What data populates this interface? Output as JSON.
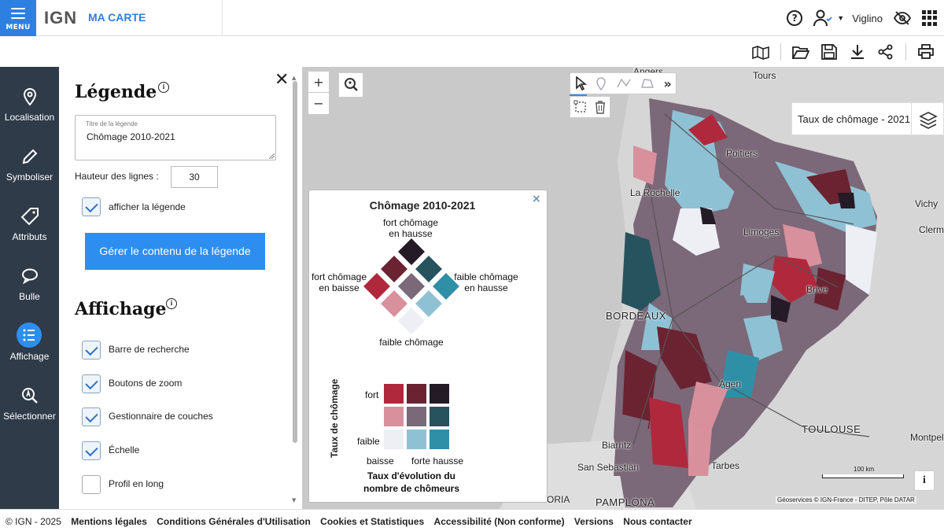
{
  "header": {
    "menu_label": "MENU",
    "logo_text": "IGN",
    "app_title": "MA CARTE",
    "username": "Viglino",
    "accent": "#2d7fe0"
  },
  "toolbar": {
    "icons": [
      "map-catalog-icon",
      "open-folder-icon",
      "save-icon",
      "download-icon",
      "share-icon",
      "print-icon"
    ]
  },
  "leftnav": {
    "items": [
      {
        "label": "Localisation",
        "icon": "location-pin-icon"
      },
      {
        "label": "Symboliser",
        "icon": "pencil-icon"
      },
      {
        "label": "Attributs",
        "icon": "tag-icon"
      },
      {
        "label": "Bulle",
        "icon": "speech-bubble-icon"
      },
      {
        "label": "Affichage",
        "icon": "list-icon",
        "active": true
      },
      {
        "label": "Sélectionner",
        "icon": "select-search-icon"
      }
    ]
  },
  "panel": {
    "legend_heading": "Légende",
    "title_field_label": "Titre de la légende",
    "title_field_value": "Chômage 2010-2021",
    "line_height_label": "Hauteur des lignes :",
    "line_height_value": "30",
    "show_legend_label": "afficher la légende",
    "show_legend_checked": true,
    "manage_button": "Gérer le contenu de la légende",
    "display_heading": "Affichage",
    "display_options": [
      {
        "label": "Barre de recherche",
        "checked": true
      },
      {
        "label": "Boutons de zoom",
        "checked": true
      },
      {
        "label": "Gestionnaire de couches",
        "checked": true
      },
      {
        "label": "Échelle",
        "checked": true
      },
      {
        "label": "Profil en long",
        "checked": false
      }
    ]
  },
  "map": {
    "zoom_in": "+",
    "zoom_out": "−",
    "layer_name": "Taux de chômage - 2021",
    "scale_label": "100 km",
    "info_button": "i",
    "attribution": "Géoservices © IGN-France - DITEP, Pôle DATAR",
    "places": [
      "Angers",
      "Tours",
      "Poitiers",
      "La Rochelle",
      "Vichy",
      "Limoges",
      "Clermo",
      "Brive",
      "BORDEAUX",
      "Agen",
      "TOULOUSE",
      "Montpell",
      "Biarritz",
      "San Sebastián",
      "Tarbes",
      "PAMPLONA",
      "ORIA"
    ]
  },
  "legend_popup": {
    "title": "Chômage 2010-2021",
    "close": "×",
    "top_label_1": "fort chômage",
    "top_label_2": "en hausse",
    "left_label_1": "fort chômage",
    "left_label_2": "en baisse",
    "right_label_1": "faible chômage",
    "right_label_2": "en hausse",
    "bottom_label": "faible chômage",
    "y_axis_title": "Taux de chômage",
    "y_high": "fort",
    "y_low": "faible",
    "x_low": "baisse",
    "x_high": "forte hausse",
    "x_axis_title_1": "Taux d'évolution du",
    "x_axis_title_2": "nombre de chômeurs",
    "colors": {
      "high_low": "#b0283c",
      "high_mid": "#6b2231",
      "high_high": "#251b26",
      "mid_low": "#d9909d",
      "mid_mid": "#7b6878",
      "mid_high": "#27535f",
      "low_low": "#eeeef5",
      "low_mid": "#8fc1d4",
      "low_high": "#2f8fa6"
    }
  },
  "footer": {
    "copyright": "© IGN - 2025",
    "links": [
      "Mentions légales",
      "Conditions Générales d'Utilisation",
      "Cookies et Statistiques",
      "Accessibilité (Non conforme)",
      "Versions",
      "Nous contacter"
    ]
  }
}
